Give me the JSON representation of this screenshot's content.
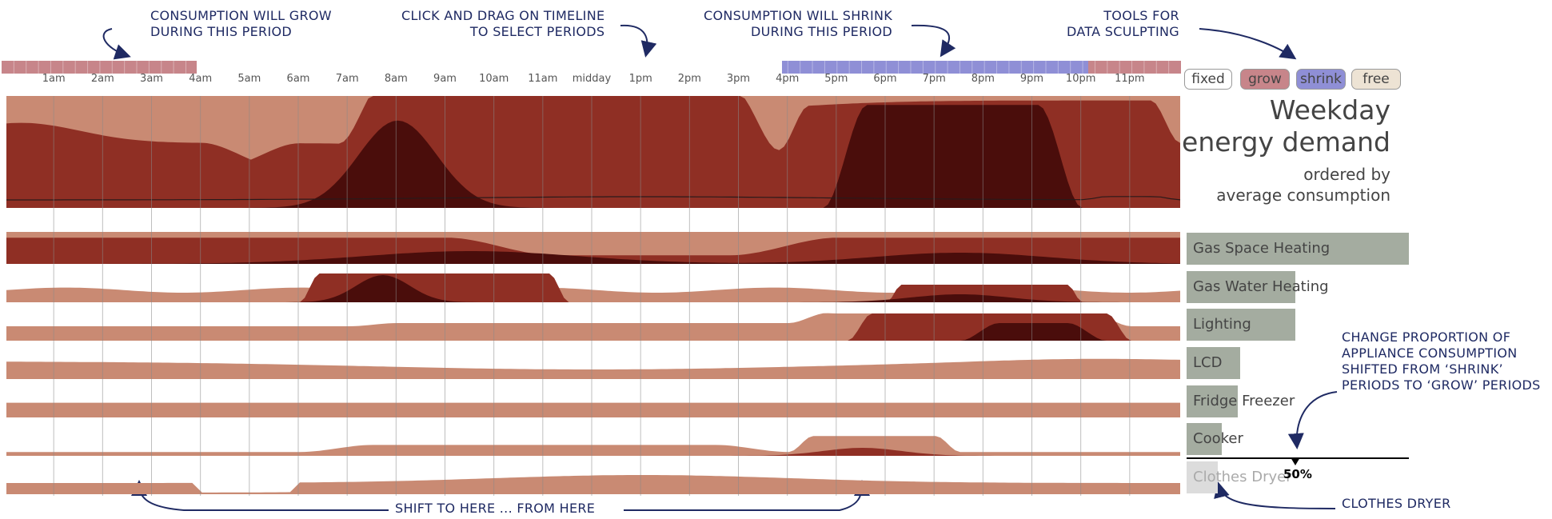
{
  "timeline": {
    "ticks": [
      "1am",
      "2am",
      "3am",
      "4am",
      "5am",
      "6am",
      "7am",
      "8am",
      "9am",
      "10am",
      "11am",
      "midday",
      "1pm",
      "2pm",
      "3pm",
      "4pm",
      "5pm",
      "6pm",
      "7pm",
      "8pm",
      "9pm",
      "10pm",
      "11pm"
    ]
  },
  "tools": {
    "fixed": "fixed",
    "grow": "grow",
    "shrink": "shrink",
    "free": "free"
  },
  "title": {
    "line1": "Weekday",
    "line2": "energy demand",
    "line3": "ordered by",
    "line4": "average consumption"
  },
  "appliances": [
    {
      "label": "Gas Space Heating",
      "value": 1.0
    },
    {
      "label": "Gas Water Heating",
      "value": 0.49
    },
    {
      "label": "Lighting",
      "value": 0.49
    },
    {
      "label": "LCD",
      "value": 0.24
    },
    {
      "label": "Fridge Freezer",
      "value": 0.23
    },
    {
      "label": "Cooker",
      "value": 0.16
    },
    {
      "label": "Clothes Dryer",
      "value": 0.14
    }
  ],
  "proportion": {
    "value": 0.5,
    "label": "50%"
  },
  "annotations": {
    "grow": "CONSUMPTION WILL GROW\nDURING THIS PERIOD",
    "drag": "CLICK AND DRAG ON TIMELINE\nTO SELECT PERIODS",
    "shrink": "CONSUMPTION WILL SHRINK\nDURING THIS PERIOD",
    "tools": "TOOLS FOR\nDATA SCULPTING",
    "proportion": "CHANGE PROPORTION OF\nAPPLIANCE CONSUMPTION\nSHIFTED FROM ‘SHRINK’\nPERIODS TO ‘GROW’ PERIODS",
    "shift": "SHIFT TO HERE ... FROM HERE",
    "dryer": "CLOTHES DRYER"
  },
  "colors": {
    "light": "#c98a73",
    "medium": "#8f2f24",
    "dark": "#4a0d0b",
    "grow": "#c7858a",
    "shrink": "#8f8fd6",
    "bar": "#a4aca0",
    "annotation": "#1f2a63"
  }
}
